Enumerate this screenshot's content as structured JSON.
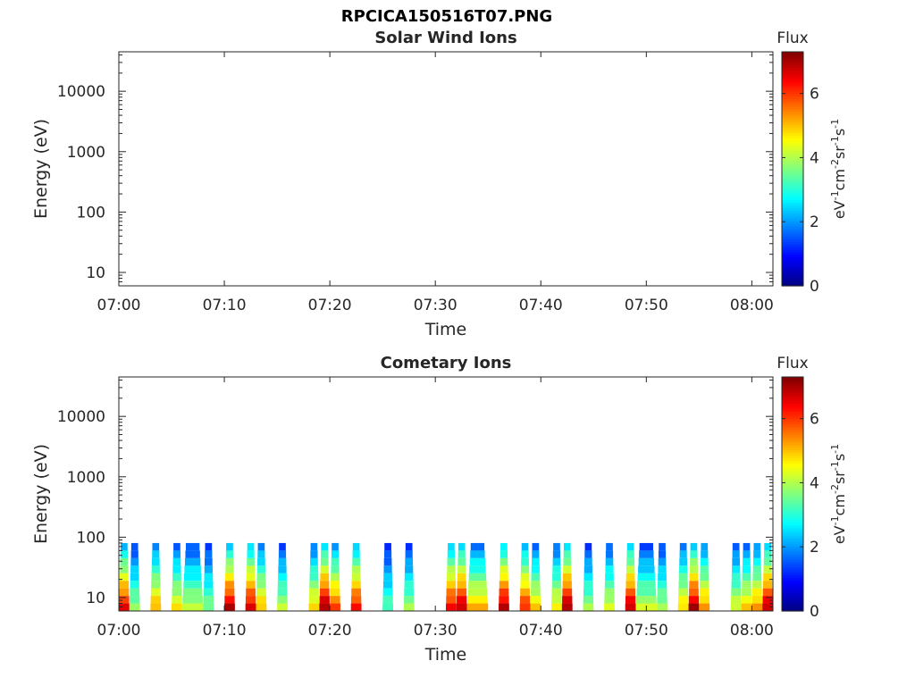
{
  "figure_title": "RPCICA150516T07.PNG",
  "chart_data": [
    {
      "type": "heatmap",
      "title": "Solar Wind Ions",
      "xlabel": "Time",
      "ylabel": "Energy (eV)",
      "x_ticks": [
        "07:00",
        "07:10",
        "07:20",
        "07:30",
        "07:40",
        "07:50",
        "08:00"
      ],
      "xlim": [
        "07:00",
        "08:02"
      ],
      "y_scale": "log",
      "y_ticks": [
        10,
        100,
        1000,
        10000
      ],
      "ylim": [
        6,
        45000
      ],
      "colorbar": {
        "label": "Flux",
        "unit": "eV-1cm-2sr-1s-1",
        "ticks": [
          0,
          2,
          4,
          6
        ],
        "range": [
          0,
          7.3
        ],
        "colormap": "jet"
      },
      "bursts": []
    },
    {
      "type": "heatmap",
      "title": "Cometary Ions",
      "xlabel": "Time",
      "ylabel": "Energy (eV)",
      "x_ticks": [
        "07:00",
        "07:10",
        "07:20",
        "07:30",
        "07:40",
        "07:50",
        "08:00"
      ],
      "xlim": [
        "07:00",
        "08:02"
      ],
      "y_scale": "log",
      "y_ticks": [
        10,
        100,
        1000,
        10000
      ],
      "ylim": [
        6,
        45000
      ],
      "colorbar": {
        "label": "Flux",
        "unit": "eV-1cm-2sr-1s-1",
        "ticks": [
          0,
          2,
          4,
          6
        ],
        "range": [
          0,
          7.3
        ],
        "colormap": "jet"
      },
      "energy_max_eV": 80,
      "bursts": [
        {
          "start": "07:00",
          "end": "07:01",
          "peak": 6.6
        },
        {
          "start": "07:01",
          "end": "07:02",
          "peak": 4.0
        },
        {
          "start": "07:03",
          "end": "07:04",
          "peak": 5.3
        },
        {
          "start": "07:05",
          "end": "07:06",
          "peak": 4.8
        },
        {
          "start": "07:06",
          "end": "07:08",
          "peak": 4.3
        },
        {
          "start": "07:08",
          "end": "07:09",
          "peak": 3.8
        },
        {
          "start": "07:10",
          "end": "07:11",
          "peak": 7.0
        },
        {
          "start": "07:12",
          "end": "07:13",
          "peak": 6.8
        },
        {
          "start": "07:13",
          "end": "07:14",
          "peak": 5.2
        },
        {
          "start": "07:15",
          "end": "07:16",
          "peak": 4.2
        },
        {
          "start": "07:18",
          "end": "07:19",
          "peak": 5.0
        },
        {
          "start": "07:19",
          "end": "07:20",
          "peak": 7.2
        },
        {
          "start": "07:20",
          "end": "07:21",
          "peak": 6.0
        },
        {
          "start": "07:22",
          "end": "07:23",
          "peak": 6.5
        },
        {
          "start": "07:25",
          "end": "07:26",
          "peak": 3.5
        },
        {
          "start": "07:27",
          "end": "07:28",
          "peak": 4.0
        },
        {
          "start": "07:31",
          "end": "07:32",
          "peak": 6.6
        },
        {
          "start": "07:32",
          "end": "07:33",
          "peak": 7.0
        },
        {
          "start": "07:33",
          "end": "07:35",
          "peak": 5.2
        },
        {
          "start": "07:36",
          "end": "07:37",
          "peak": 7.1
        },
        {
          "start": "07:38",
          "end": "07:39",
          "peak": 6.3
        },
        {
          "start": "07:39",
          "end": "07:40",
          "peak": 5.0
        },
        {
          "start": "07:41",
          "end": "07:42",
          "peak": 4.8
        },
        {
          "start": "07:42",
          "end": "07:43",
          "peak": 7.2
        },
        {
          "start": "07:44",
          "end": "07:45",
          "peak": 4.0
        },
        {
          "start": "07:46",
          "end": "07:47",
          "peak": 4.5
        },
        {
          "start": "07:48",
          "end": "07:49",
          "peak": 7.0
        },
        {
          "start": "07:49",
          "end": "07:51",
          "peak": 4.3
        },
        {
          "start": "07:51",
          "end": "07:52",
          "peak": 4.1
        },
        {
          "start": "07:53",
          "end": "07:54",
          "peak": 5.0
        },
        {
          "start": "07:54",
          "end": "07:55",
          "peak": 7.1
        },
        {
          "start": "07:55",
          "end": "07:56",
          "peak": 5.5
        },
        {
          "start": "07:58",
          "end": "07:59",
          "peak": 4.5
        },
        {
          "start": "07:59",
          "end": "08:00",
          "peak": 5.0
        },
        {
          "start": "08:00",
          "end": "08:01",
          "peak": 5.5
        },
        {
          "start": "08:01",
          "end": "08:02",
          "peak": 7.0
        }
      ]
    }
  ]
}
